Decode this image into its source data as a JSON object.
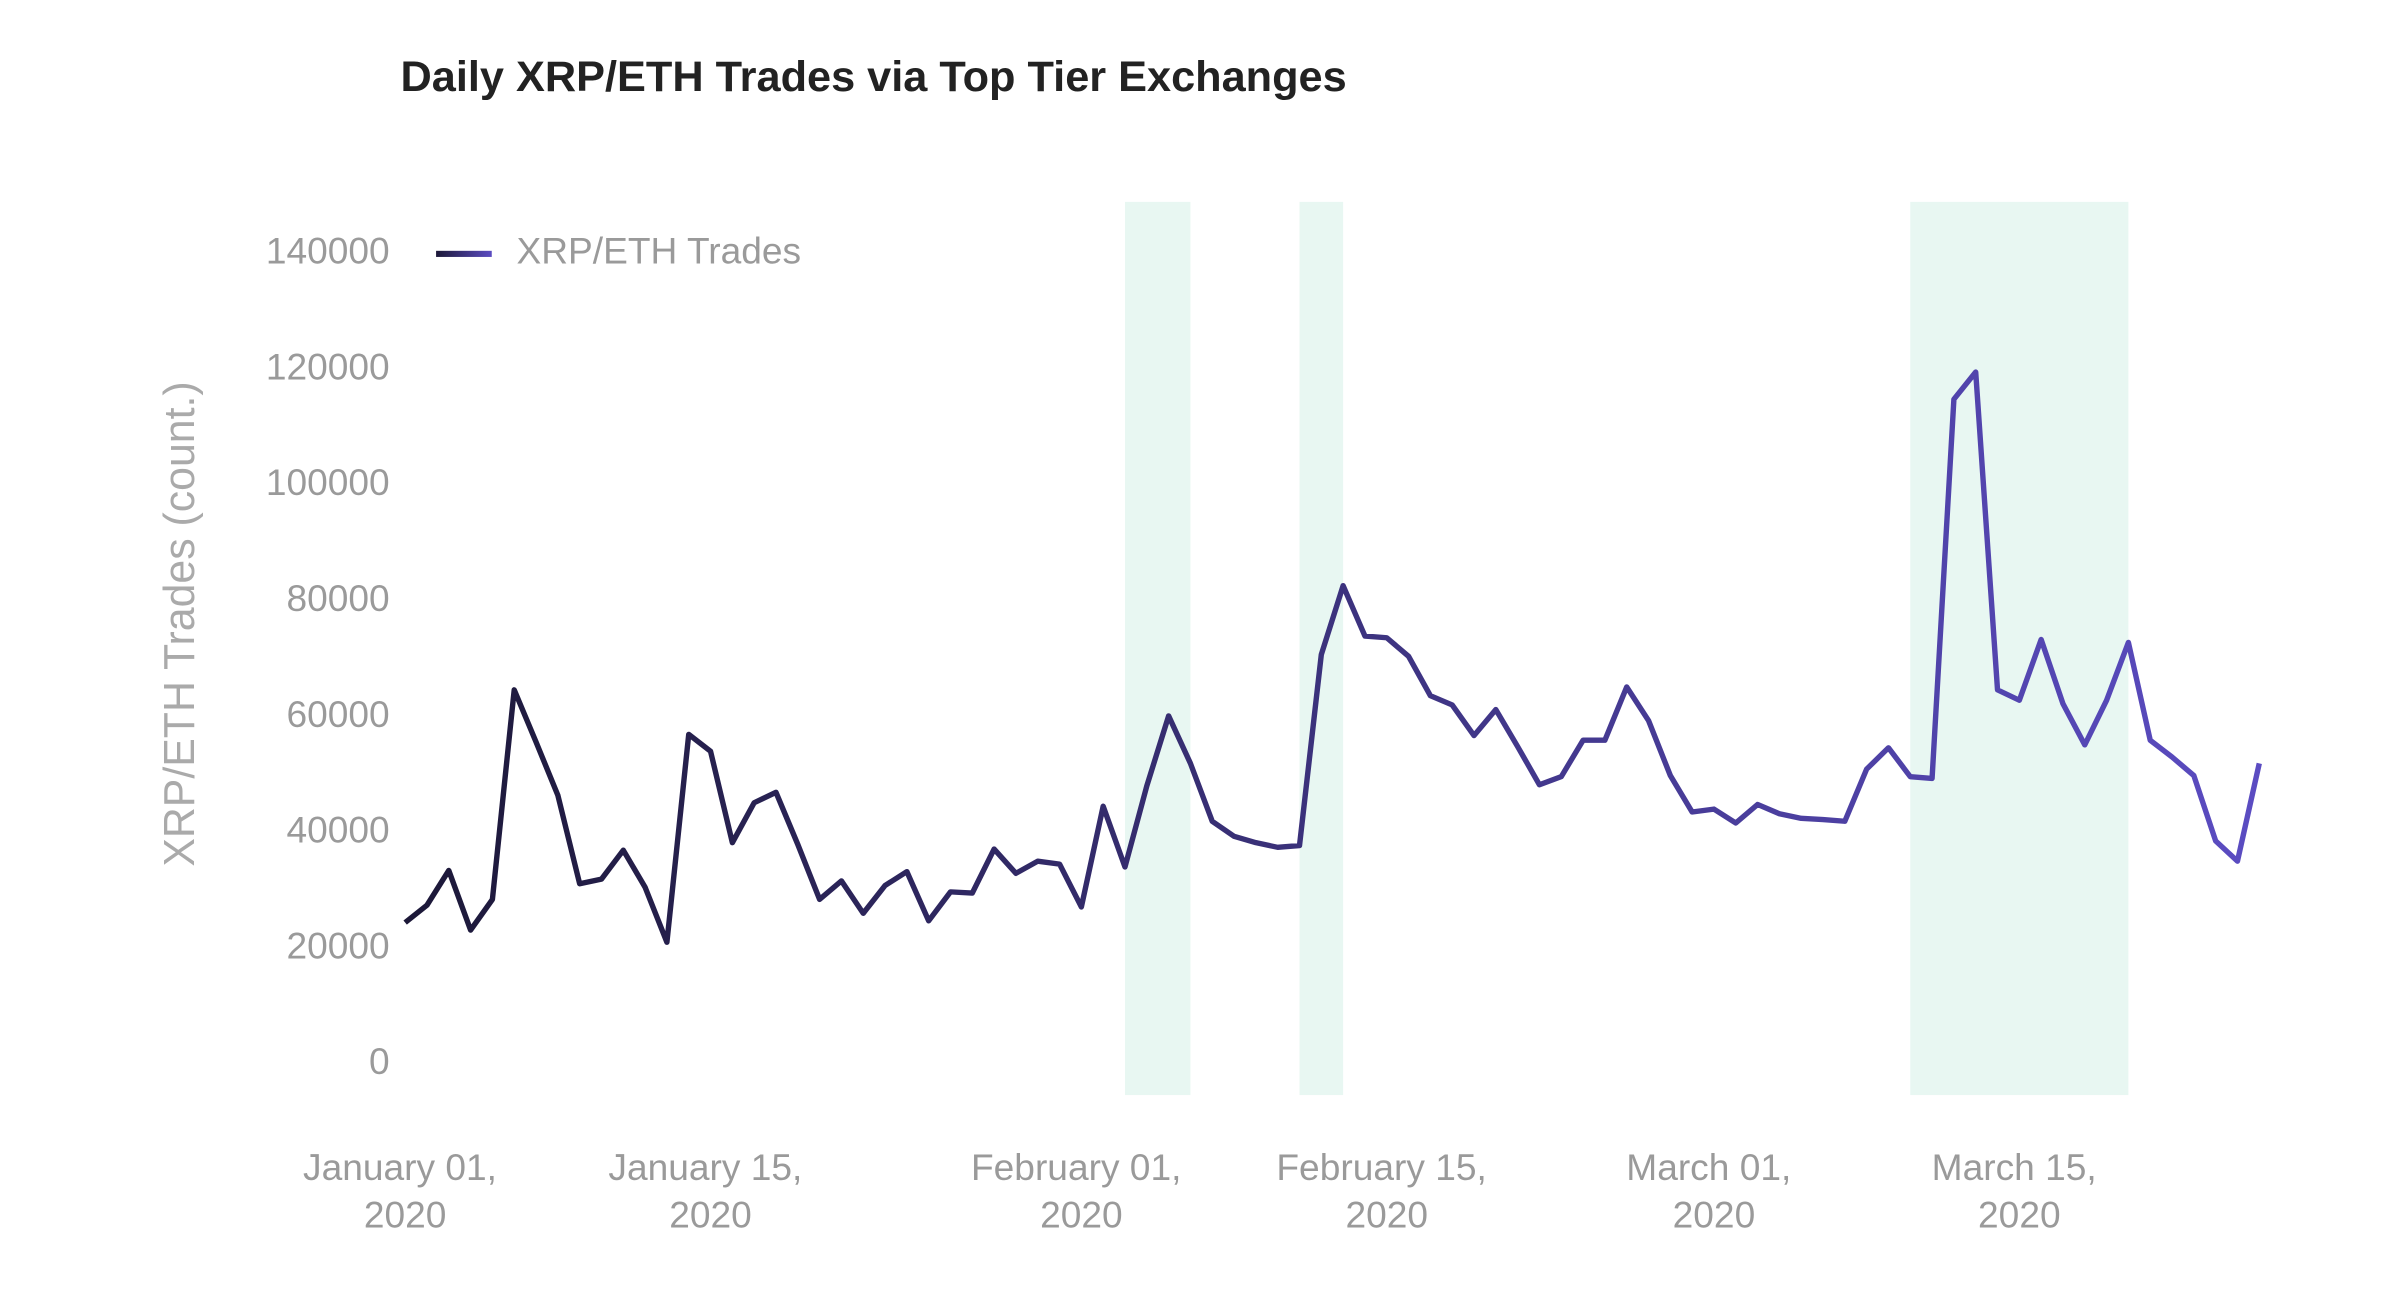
{
  "chart_data": {
    "type": "line",
    "title": "Daily XRP/ETH Trades via Top Tier Exchanges",
    "y_label": "XRP/ETH Trades (count.)",
    "x": [
      "2020-01-01",
      "2020-01-02",
      "2020-01-03",
      "2020-01-04",
      "2020-01-05",
      "2020-01-06",
      "2020-01-07",
      "2020-01-08",
      "2020-01-09",
      "2020-01-10",
      "2020-01-11",
      "2020-01-12",
      "2020-01-13",
      "2020-01-14",
      "2020-01-15",
      "2020-01-16",
      "2020-01-17",
      "2020-01-18",
      "2020-01-19",
      "2020-01-20",
      "2020-01-21",
      "2020-01-22",
      "2020-01-23",
      "2020-01-24",
      "2020-01-25",
      "2020-01-26",
      "2020-01-27",
      "2020-01-28",
      "2020-01-29",
      "2020-01-30",
      "2020-01-31",
      "2020-02-01",
      "2020-02-02",
      "2020-02-03",
      "2020-02-04",
      "2020-02-05",
      "2020-02-06",
      "2020-02-07",
      "2020-02-08",
      "2020-02-09",
      "2020-02-10",
      "2020-02-11",
      "2020-02-12",
      "2020-02-13",
      "2020-02-14",
      "2020-02-15",
      "2020-02-16",
      "2020-02-17",
      "2020-02-18",
      "2020-02-19",
      "2020-02-20",
      "2020-02-21",
      "2020-02-22",
      "2020-02-23",
      "2020-02-24",
      "2020-02-25",
      "2020-02-26",
      "2020-02-27",
      "2020-02-28",
      "2020-02-29",
      "2020-03-01",
      "2020-03-02",
      "2020-03-03",
      "2020-03-04",
      "2020-03-05",
      "2020-03-06",
      "2020-03-07",
      "2020-03-08",
      "2020-03-09",
      "2020-03-10",
      "2020-03-11",
      "2020-03-12",
      "2020-03-13",
      "2020-03-14",
      "2020-03-15",
      "2020-03-16",
      "2020-03-17",
      "2020-03-18",
      "2020-03-19",
      "2020-03-20",
      "2020-03-21",
      "2020-03-22",
      "2020-03-23",
      "2020-03-24",
      "2020-03-25",
      "2020-03-26"
    ],
    "series": [
      {
        "name": "XRP/ETH Trades",
        "gradient": [
          "#1c1838",
          "#5b4cc2"
        ],
        "values": [
          24500,
          27500,
          33500,
          23200,
          28500,
          64700,
          55700,
          46500,
          31200,
          32000,
          37000,
          30600,
          21100,
          57000,
          54100,
          38300,
          45200,
          47000,
          38000,
          28500,
          31700,
          26100,
          30900,
          33300,
          24800,
          29800,
          29600,
          37200,
          33000,
          35100,
          34600,
          27200,
          44600,
          34100,
          48100,
          60200,
          52000,
          42000,
          39400,
          38300,
          37500,
          37800,
          70800,
          82700,
          74000,
          73700,
          70500,
          63700,
          62100,
          56800,
          61300,
          54900,
          48300,
          49700,
          56000,
          56000,
          65200,
          59400,
          49900,
          43600,
          44100,
          41700,
          44900,
          43300,
          42500,
          42300,
          42000,
          51000,
          54700,
          49700,
          49400,
          114900,
          119600,
          64700,
          62900,
          73400,
          62300,
          55200,
          62900,
          72900,
          56000,
          53100,
          49900,
          38600,
          35100,
          52000
        ]
      }
    ],
    "xlim": [
      "2020-01-01",
      "2020-03-26"
    ],
    "xticks": [
      {
        "value": "2020-01-01",
        "label": "January 01, 2020"
      },
      {
        "value": "2020-01-15",
        "label": "January 15, 2020"
      },
      {
        "value": "2020-02-01",
        "label": "February 01, 2020"
      },
      {
        "value": "2020-02-15",
        "label": "February 15, 2020"
      },
      {
        "value": "2020-03-01",
        "label": "March 01, 2020"
      },
      {
        "value": "2020-03-15",
        "label": "March 15, 2020"
      }
    ],
    "ylim": [
      -5300,
      149000
    ],
    "yticks": [
      0,
      20000,
      40000,
      60000,
      80000,
      100000,
      120000,
      140000
    ],
    "shaded_ranges": [
      [
        "2020-02-03",
        "2020-02-06"
      ],
      [
        "2020-02-11",
        "2020-02-13"
      ],
      [
        "2020-03-10",
        "2020-03-20"
      ]
    ],
    "shade_color": "#e8f7f2",
    "legend": "top-left"
  }
}
